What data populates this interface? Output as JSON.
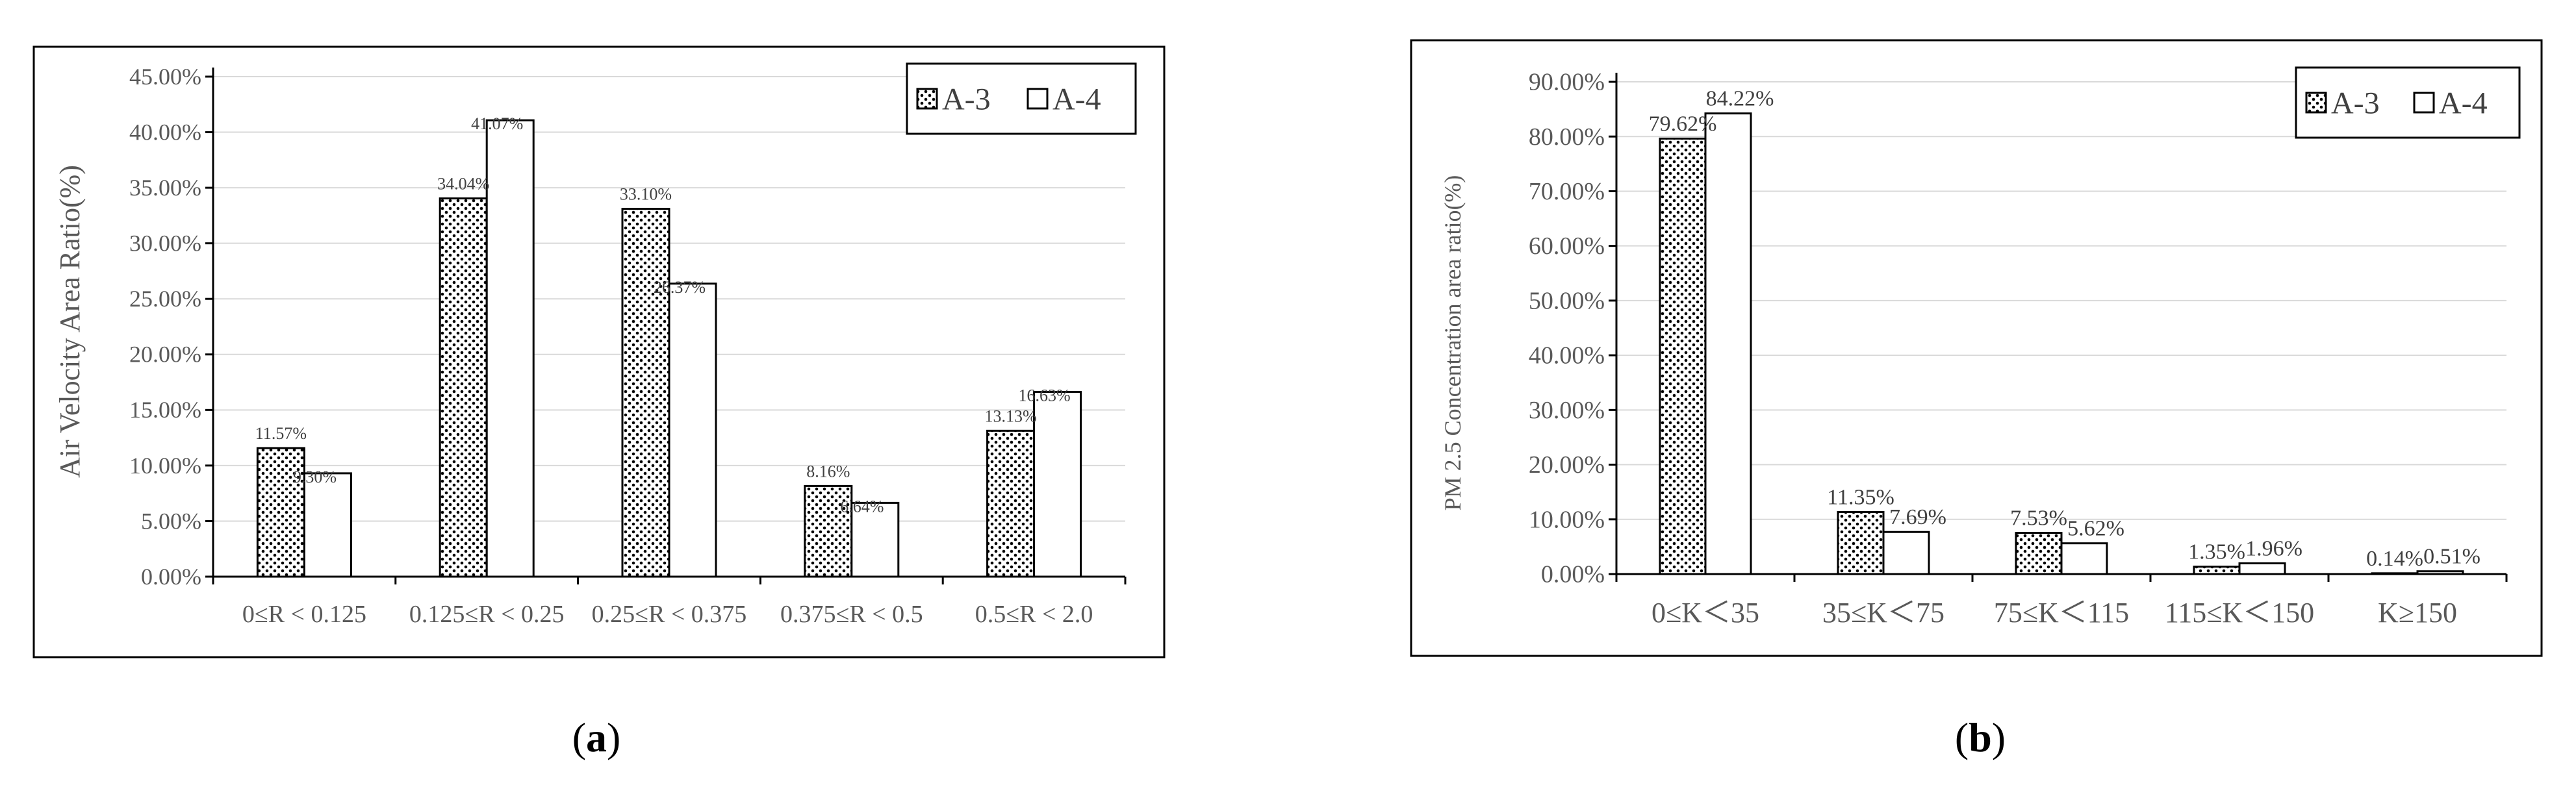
{
  "chart_data": [
    {
      "type": "bar",
      "panel_label": "a",
      "categories": [
        "0≤R < 0.125",
        "0.125≤R < 0.25",
        "0.25≤R < 0.375",
        "0.375≤R < 0.5",
        "0.5≤R < 2.0"
      ],
      "series": [
        {
          "name": "A-3",
          "values": [
            11.57,
            34.04,
            33.1,
            8.16,
            13.13
          ],
          "labels": [
            "11.57%",
            "34.04%",
            "33.10%",
            "8.16%",
            "13.13%"
          ],
          "fill": "dotted"
        },
        {
          "name": "A-4",
          "values": [
            9.3,
            41.07,
            26.37,
            6.64,
            16.63
          ],
          "labels": [
            "9.30%",
            "41.07%",
            "26.37%",
            "6.64%",
            "16.63%"
          ],
          "fill": "white"
        }
      ],
      "yticks": [
        "0.00%",
        "5.00%",
        "10.00%",
        "15.00%",
        "20.00%",
        "25.00%",
        "30.00%",
        "35.00%",
        "40.00%",
        "45.00%"
      ],
      "ylim": [
        0,
        45
      ],
      "xlabel": "",
      "ylabel": "Air Velocity Area Ratio(%)",
      "grid": true,
      "legend": "top-right"
    },
    {
      "type": "bar",
      "panel_label": "b",
      "categories": [
        "0≤K＜35",
        "35≤K＜75",
        "75≤K＜115",
        "115≤K＜150",
        "K≥150"
      ],
      "series": [
        {
          "name": "A-3",
          "values": [
            79.62,
            11.35,
            7.53,
            1.35,
            0.14
          ],
          "labels": [
            "79.62%",
            "11.35%",
            "7.53%",
            "1.35%",
            "0.14%"
          ],
          "fill": "dotted"
        },
        {
          "name": "A-4",
          "values": [
            84.22,
            7.69,
            5.62,
            1.96,
            0.51
          ],
          "labels": [
            "84.22%",
            "7.69%",
            "5.62%",
            "1.96%",
            "0.51%"
          ],
          "fill": "white"
        }
      ],
      "yticks": [
        "0.00%",
        "10.00%",
        "20.00%",
        "30.00%",
        "40.00%",
        "50.00%",
        "60.00%",
        "70.00%",
        "80.00%",
        "90.00%"
      ],
      "ylim": [
        0,
        90
      ],
      "xlabel": "",
      "ylabel": "PM 2.5 Concentration area ratio(%)",
      "grid": true,
      "legend": "top-right"
    }
  ],
  "colors": {
    "bar_stroke": "#000000",
    "dots": "#000000",
    "grid": "#d9d9d9",
    "axis": "#000000",
    "tick_text": "#595959",
    "frame": "#000000"
  }
}
